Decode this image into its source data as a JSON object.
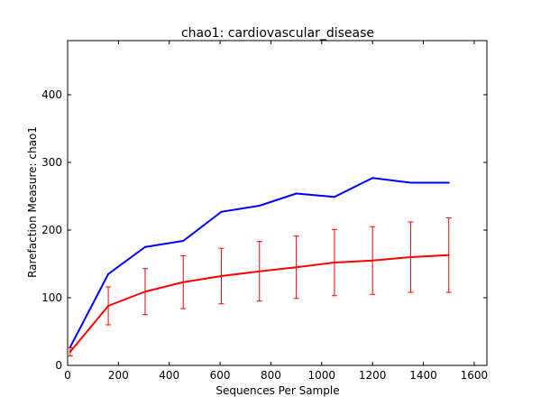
{
  "chart_data": {
    "type": "line",
    "title": "chao1: cardiovascular_disease",
    "xlabel": "Sequences Per Sample",
    "ylabel": "Rarefaction Measure: chao1",
    "xlim": [
      0,
      1650
    ],
    "ylim": [
      0,
      480
    ],
    "xticks": [
      0,
      200,
      400,
      600,
      800,
      1000,
      1200,
      1400,
      1600
    ],
    "yticks": [
      0,
      100,
      200,
      300,
      400
    ],
    "grid": false,
    "legend": "none",
    "x": [
      10,
      160,
      305,
      455,
      605,
      755,
      900,
      1050,
      1200,
      1350,
      1500
    ],
    "series": [
      {
        "name": "series-blue",
        "color": "#0000ff",
        "values": [
          27,
          135,
          175,
          184,
          227,
          236,
          254,
          249,
          277,
          270,
          270
        ]
      },
      {
        "name": "series-red",
        "color": "#ff0000",
        "values": [
          20,
          88,
          109,
          123,
          132,
          139,
          145,
          152,
          155,
          160,
          163
        ],
        "error": [
          6,
          28,
          34,
          39,
          41,
          44,
          46,
          49,
          50,
          52,
          55
        ]
      }
    ]
  }
}
